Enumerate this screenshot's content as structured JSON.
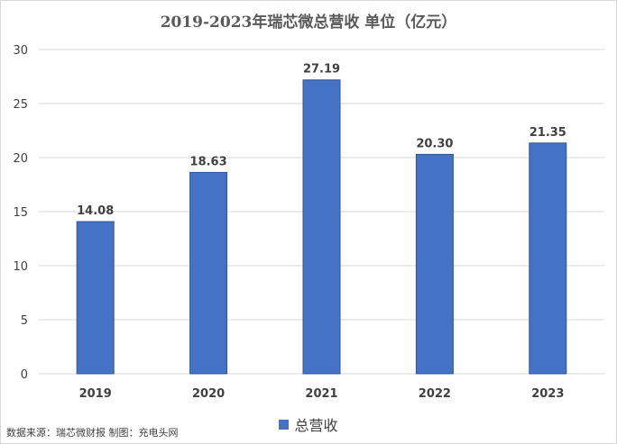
{
  "chart_data": {
    "type": "bar",
    "title": "2019-2023年瑞芯微总营收 单位（亿元）",
    "categories": [
      "2019",
      "2020",
      "2021",
      "2022",
      "2023"
    ],
    "series": [
      {
        "name": "总营收",
        "values": [
          14.08,
          18.63,
          27.19,
          20.3,
          21.35
        ],
        "labels": [
          "14.08",
          "18.63",
          "27.19",
          "20.30",
          "21.35"
        ],
        "color": "#4472c4"
      }
    ],
    "ylim": [
      0,
      30
    ],
    "yticks": [
      0,
      5,
      10,
      15,
      20,
      25,
      30
    ],
    "grid": true,
    "legend": "bottom"
  },
  "footer": {
    "source": "数据来源：瑞芯微财报  制图：充电头网"
  }
}
